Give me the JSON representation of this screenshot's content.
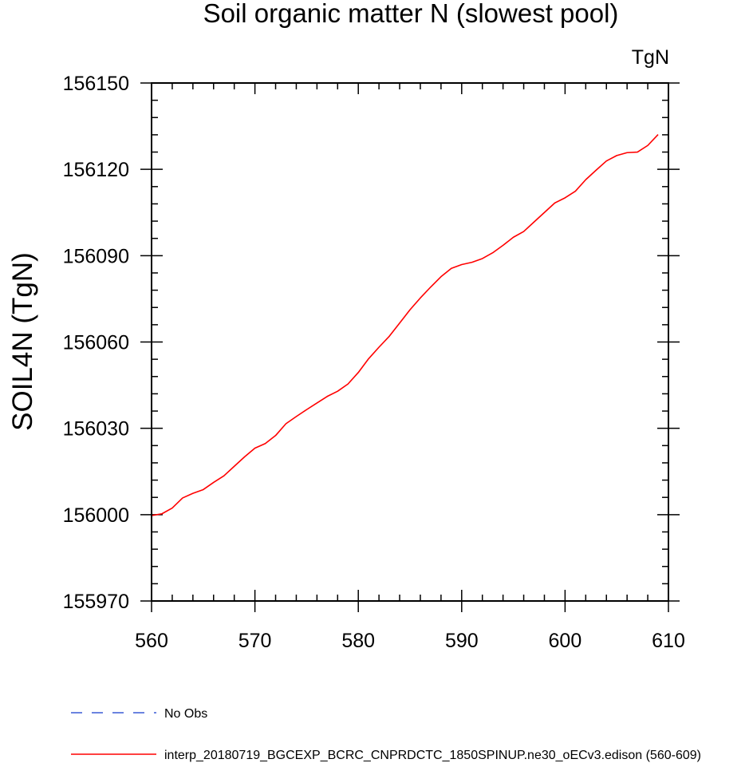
{
  "chart_data": {
    "type": "line",
    "title": "Soil organic matter N (slowest pool)",
    "units_label": "TgN",
    "ylabel": "SOIL4N  (TgN)",
    "xlabel": "",
    "xlim": [
      560,
      610
    ],
    "ylim": [
      155970,
      156150
    ],
    "x_ticks": [
      560,
      570,
      580,
      590,
      600,
      610
    ],
    "y_ticks": [
      155970,
      156000,
      156030,
      156060,
      156090,
      156120,
      156150
    ],
    "x_tick_labels": [
      "560",
      "570",
      "580",
      "590",
      "600",
      "610"
    ],
    "y_tick_labels": [
      "155970",
      "156000",
      "156030",
      "156060",
      "156090",
      "156120",
      "156150"
    ],
    "x_minor_step": 2,
    "y_minor_step": 6,
    "grid": false,
    "legend_position": "bottom-left",
    "series": [
      {
        "name": "interp_20180719_BGCEXP_BCRC_CNPRDCTC_1850SPINUP.ne30_oECv3.edison (560-609)",
        "color": "#ff0000",
        "style": "solid",
        "x": [
          560,
          561,
          562,
          563,
          564,
          565,
          566,
          567,
          568,
          569,
          570,
          571,
          572,
          573,
          574,
          575,
          576,
          577,
          578,
          579,
          580,
          581,
          582,
          583,
          584,
          585,
          586,
          587,
          588,
          589,
          590,
          591,
          592,
          593,
          594,
          595,
          596,
          597,
          598,
          599,
          600,
          601,
          602,
          603,
          604,
          605,
          606,
          607,
          608,
          609
        ],
        "y": [
          155999.7,
          156000.3,
          156002.3,
          156005.8,
          156007.4,
          156008.7,
          156011.2,
          156013.5,
          156016.8,
          156020.1,
          156023.1,
          156024.7,
          156027.5,
          156031.6,
          156034.1,
          156036.5,
          156038.8,
          156041.1,
          156042.9,
          156045.4,
          156049.4,
          156054.2,
          156058.2,
          156062.0,
          156066.6,
          156071.2,
          156075.3,
          156079.1,
          156082.7,
          156085.6,
          156086.9,
          156087.7,
          156089.0,
          156091.0,
          156093.6,
          156096.4,
          156098.4,
          156101.7,
          156105.0,
          156108.3,
          156110.1,
          156112.4,
          156116.4,
          156119.7,
          156122.9,
          156124.8,
          156125.8,
          156126.0,
          156128.3,
          156132.1
        ]
      },
      {
        "name": "No Obs",
        "color": "#3a5bd6",
        "style": "dashed",
        "x": [],
        "y": []
      }
    ]
  }
}
